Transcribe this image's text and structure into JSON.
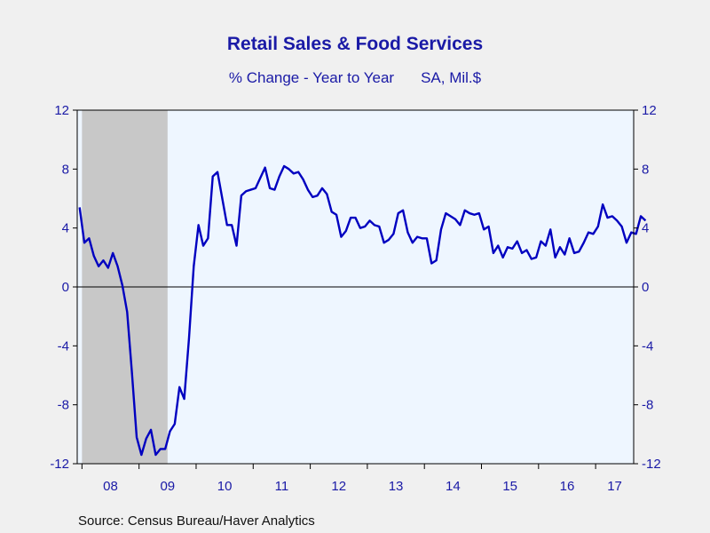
{
  "chart_data": {
    "type": "line",
    "title": "Retail Sales & Food Services",
    "subtitle_a": "% Change - Year to Year",
    "subtitle_b": "SA, Mil.$",
    "source": "Source:  Census Bureau/Haver Analytics",
    "ylim": [
      -12,
      12
    ],
    "yticks": [
      -12,
      -8,
      -4,
      0,
      4,
      8,
      12
    ],
    "left_tick_labels": [
      "12",
      "8",
      "4",
      "0",
      "-4",
      "-8",
      "-12"
    ],
    "right_tick_labels": [
      "12",
      "8",
      "4",
      "0",
      "-4",
      "-8",
      "-12"
    ],
    "x_start": "2007-12",
    "x_end": "2017-08",
    "year_labels": [
      "08",
      "09",
      "10",
      "11",
      "12",
      "13",
      "14",
      "15",
      "16",
      "17"
    ],
    "zero_line": true,
    "recession_shading": {
      "start": "2008-01",
      "end": "2009-06",
      "color": "#c8c8c8"
    },
    "colors": {
      "line": "#0000c0",
      "plot_bg": "#eef6ff",
      "text": "#1a1aa6"
    },
    "series": [
      {
        "values": [
          5.4,
          3.0,
          3.3,
          2.1,
          1.4,
          1.8,
          1.3,
          2.3,
          1.4,
          0.1,
          -1.7,
          -5.8,
          -10.2,
          -11.4,
          -10.3,
          -9.7,
          -11.4,
          -11.0,
          -11.0,
          -9.8,
          -9.3,
          -6.8,
          -7.6,
          -3.5,
          1.4,
          4.2,
          2.8,
          3.3,
          7.5,
          7.8,
          6.0,
          4.2,
          4.2,
          2.8,
          6.2,
          6.5,
          6.6,
          6.7,
          7.4,
          8.1,
          6.7,
          6.6,
          7.5,
          8.2,
          8.0,
          7.7,
          7.8,
          7.3,
          6.6,
          6.1,
          6.2,
          6.7,
          6.3,
          5.1,
          4.9,
          3.4,
          3.8,
          4.7,
          4.7,
          4.0,
          4.1,
          4.5,
          4.2,
          4.1,
          3.0,
          3.2,
          3.6,
          5.0,
          5.2,
          3.7,
          3.0,
          3.4,
          3.3,
          3.3,
          1.6,
          1.8,
          3.9,
          5.0,
          4.8,
          4.6,
          4.2,
          5.2,
          5.0,
          4.9,
          5.0,
          3.9,
          4.1,
          2.3,
          2.8,
          2.0,
          2.7,
          2.6,
          3.1,
          2.3,
          2.5,
          1.9,
          2.0,
          3.1,
          2.8,
          3.9,
          2.0,
          2.7,
          2.2,
          3.3,
          2.3,
          2.4,
          3.0,
          3.7,
          3.6,
          4.1,
          5.6,
          4.7,
          4.8,
          4.5,
          4.1,
          3.0,
          3.7,
          3.6,
          4.8,
          4.5
        ]
      }
    ]
  }
}
